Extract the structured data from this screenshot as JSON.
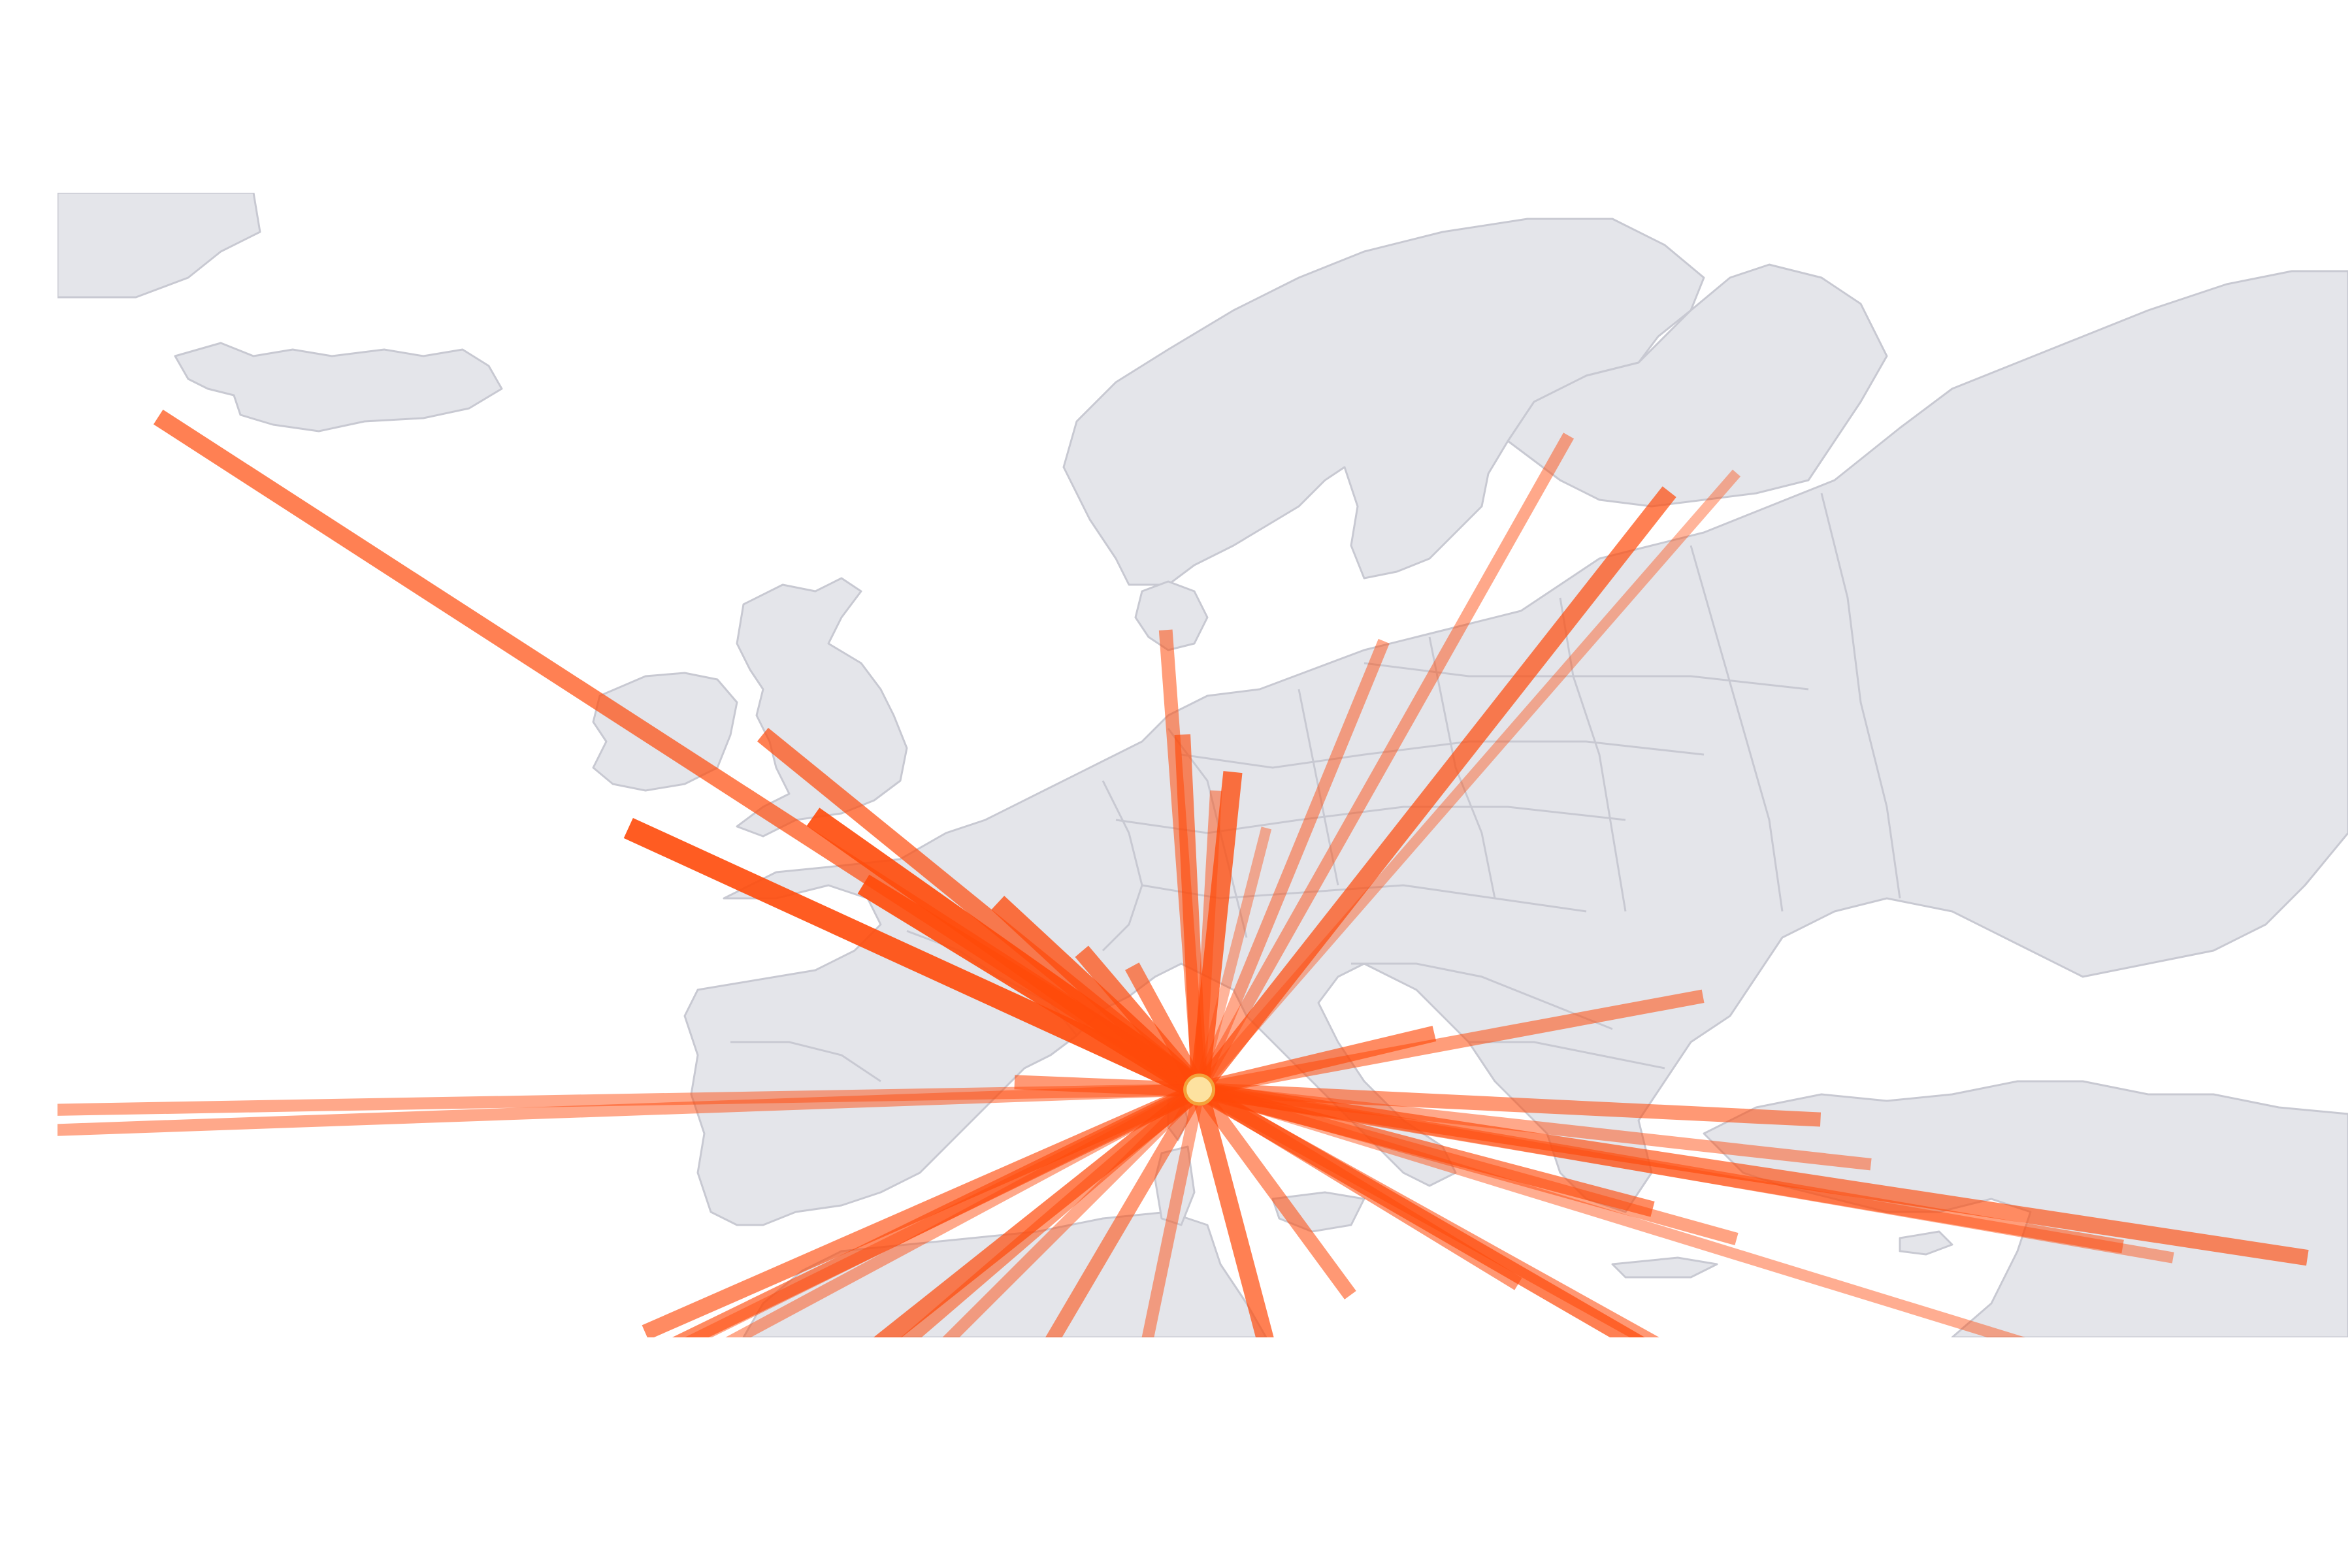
{
  "map": {
    "type": "flow-map",
    "hub": {
      "name": "",
      "lon": 9.0,
      "lat": 46.0
    },
    "colors": {
      "land": "#e4e5ea",
      "borders": "#c8c9d2",
      "flow": "#ff4a0a",
      "hub_fill": "#fde2a0",
      "hub_stroke": "#f3a23a"
    },
    "flows": [
      {
        "lon": -22.0,
        "lat": 64.0,
        "weight": 0.7
      },
      {
        "lon": -8.0,
        "lat": 53.0,
        "weight": 1.0
      },
      {
        "lon": -2.5,
        "lat": 53.3,
        "weight": 1.0
      },
      {
        "lon": -1.0,
        "lat": 51.5,
        "weight": 1.0
      },
      {
        "lon": -4.0,
        "lat": 55.5,
        "weight": 0.7
      },
      {
        "lon": 3.0,
        "lat": 51.0,
        "weight": 0.8
      },
      {
        "lon": 5.5,
        "lat": 49.7,
        "weight": 0.7
      },
      {
        "lon": 7.0,
        "lat": 49.3,
        "weight": 0.6
      },
      {
        "lon": 8.0,
        "lat": 58.3,
        "weight": 0.45
      },
      {
        "lon": 8.5,
        "lat": 55.5,
        "weight": 0.6
      },
      {
        "lon": 9.5,
        "lat": 54.0,
        "weight": 0.35
      },
      {
        "lon": 10.0,
        "lat": 54.5,
        "weight": 0.8
      },
      {
        "lon": 11.0,
        "lat": 53.0,
        "weight": 0.25
      },
      {
        "lon": 14.5,
        "lat": 58.0,
        "weight": 0.35
      },
      {
        "lon": 20.0,
        "lat": 63.5,
        "weight": 0.35
      },
      {
        "lon": 23.0,
        "lat": 62.0,
        "weight": 0.7
      },
      {
        "lon": 25.0,
        "lat": 62.5,
        "weight": 0.25
      },
      {
        "lon": 24.0,
        "lat": 48.5,
        "weight": 0.45
      },
      {
        "lon": 16.0,
        "lat": 47.5,
        "weight": 0.6
      },
      {
        "lon": 3.5,
        "lat": 46.2,
        "weight": 0.5
      },
      {
        "lon": -54.0,
        "lat": 45.0,
        "weight": 0.35
      },
      {
        "lon": -54.0,
        "lat": 44.0,
        "weight": 0.35
      },
      {
        "lon": -9.0,
        "lat": 38.0,
        "weight": 0.35
      },
      {
        "lon": -7.5,
        "lat": 39.5,
        "weight": 0.6
      },
      {
        "lon": -7.0,
        "lat": 39.0,
        "weight": 0.6
      },
      {
        "lon": -5.0,
        "lat": 36.0,
        "weight": 0.7
      },
      {
        "lon": -2.0,
        "lat": 37.5,
        "weight": 0.45
      },
      {
        "lon": -20.0,
        "lat": 32.0,
        "weight": 0.35
      },
      {
        "lon": -5.5,
        "lat": 33.0,
        "weight": 0.35
      },
      {
        "lon": 0.5,
        "lat": 33.0,
        "weight": 0.5
      },
      {
        "lon": 6.0,
        "lat": 33.0,
        "weight": 0.35
      },
      {
        "lon": 11.5,
        "lat": 37.5,
        "weight": 0.7
      },
      {
        "lon": 13.5,
        "lat": 40.5,
        "weight": 0.5
      },
      {
        "lon": 18.5,
        "lat": 40.8,
        "weight": 0.5
      },
      {
        "lon": 22.5,
        "lat": 42.8,
        "weight": 0.6
      },
      {
        "lon": 27.5,
        "lat": 45.2,
        "weight": 0.5
      },
      {
        "lon": 25.0,
        "lat": 42.0,
        "weight": 0.4
      },
      {
        "lon": 29.0,
        "lat": 44.0,
        "weight": 0.35
      },
      {
        "lon": 34.0,
        "lat": 33.0,
        "weight": 0.7
      },
      {
        "lon": 36.0,
        "lat": 32.5,
        "weight": 0.5
      },
      {
        "lon": 38.0,
        "lat": 38.0,
        "weight": 0.3
      },
      {
        "lon": 42.0,
        "lat": 41.5,
        "weight": 0.6
      },
      {
        "lon": 36.5,
        "lat": 41.8,
        "weight": 0.45
      },
      {
        "lon": 38.0,
        "lat": 41.5,
        "weight": 0.3
      }
    ]
  }
}
